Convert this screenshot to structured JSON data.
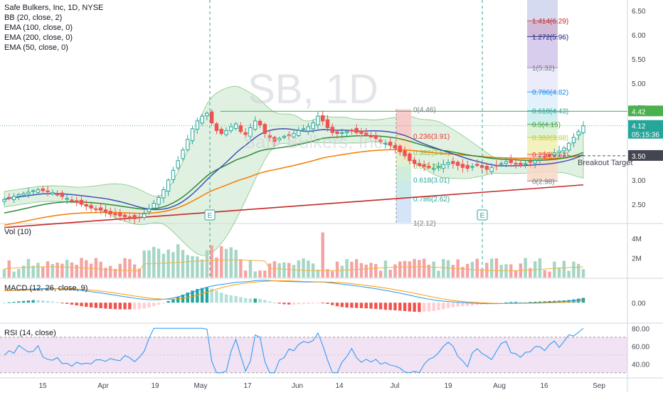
{
  "header": {
    "title": "Safe Bulkers, Inc, 1D, NYSE",
    "indicators": [
      "BB (20, close, 2)",
      "EMA (100, close, 0)",
      "EMA (200, close, 0)",
      "EMA (50, close, 0)"
    ],
    "watermark": "SB, 1D",
    "watermark_sub": "Safe Bulkers, Inc"
  },
  "colors": {
    "up": "#26a69a",
    "down": "#ef5350",
    "bb_fill": "#c8e6c9",
    "bb_line": "#81c784",
    "basis": "#3f51b5",
    "ema50": "#2e8b3a",
    "ema100": "#f57c00",
    "ema200": "#c62828",
    "rsi_line": "#2196f3",
    "rsi_band": "#e1bee7",
    "macd": "#2196f3",
    "signal": "#ff9800"
  },
  "chart_data": [
    {
      "type": "candlestick",
      "name": "price",
      "x_ticks": [
        "15",
        "Apr",
        "19",
        "May",
        "17",
        "Jun",
        "14",
        "Jul",
        "19",
        "Aug",
        "16",
        "Sep"
      ],
      "y_ticks": [
        "6.50",
        "6.00",
        "5.50",
        "5.00",
        "4.50",
        "4.00",
        "3.50",
        "3.00",
        "2.50"
      ],
      "ylim": [
        2.0,
        6.6
      ],
      "closes": [
        2.6,
        2.64,
        2.66,
        2.7,
        2.72,
        2.75,
        2.78,
        2.8,
        2.78,
        2.76,
        2.74,
        2.7,
        2.66,
        2.62,
        2.58,
        2.54,
        2.5,
        2.46,
        2.42,
        2.4,
        2.38,
        2.34,
        2.3,
        2.28,
        2.26,
        2.24,
        2.22,
        2.2,
        2.22,
        2.3,
        2.4,
        2.52,
        2.64,
        2.8,
        3.0,
        3.2,
        3.4,
        3.62,
        3.84,
        4.06,
        4.22,
        4.32,
        4.38,
        4.18,
        4.02,
        3.96,
        4.02,
        4.1,
        4.16,
        4.0,
        3.94,
        4.08,
        4.22,
        4.14,
        3.96,
        3.88,
        3.8,
        3.86,
        3.9,
        3.92,
        3.96,
        4.02,
        4.06,
        4.1,
        4.18,
        4.32,
        4.22,
        4.08,
        3.98,
        3.96,
        3.98,
        4.0,
        4.02,
        3.98,
        3.96,
        3.94,
        3.9,
        3.86,
        3.8,
        3.76,
        3.72,
        3.66,
        3.58,
        3.5,
        3.4,
        3.34,
        3.3,
        3.28,
        3.26,
        3.24,
        3.28,
        3.32,
        3.36,
        3.34,
        3.3,
        3.26,
        3.24,
        3.28,
        3.3,
        3.26,
        3.22,
        3.26,
        3.3,
        3.34,
        3.38,
        3.36,
        3.34,
        3.3,
        3.34,
        3.38,
        3.4,
        3.44,
        3.48,
        3.52,
        3.56,
        3.6,
        3.66,
        3.76,
        3.88,
        4.0,
        4.12
      ],
      "last_price": "4.12",
      "countdown": "05:15:36",
      "resistance": "4.42",
      "breakout_price": "3.50",
      "breakout_label": "Breakout Target",
      "earnings_marker": "E",
      "fib_left": [
        {
          "label": "0(4.46)",
          "value": 4.46
        },
        {
          "label": "0.236(3.91)",
          "value": 3.91
        },
        {
          "label": "0.382(3.57)",
          "value": 3.57
        },
        {
          "label": "0.5(3.29)",
          "value": 3.29
        },
        {
          "label": "0.618(3.01)",
          "value": 3.01
        },
        {
          "label": "0.786(2.62)",
          "value": 2.62
        },
        {
          "label": "1(2.12)",
          "value": 2.12
        }
      ],
      "fib_right": [
        {
          "label": "1.414(6.29)",
          "value": 6.29
        },
        {
          "label": "1.272(5.96)",
          "value": 5.96
        },
        {
          "label": "1(5.32)",
          "value": 5.32
        },
        {
          "label": "0.786(4.82)",
          "value": 4.82
        },
        {
          "label": "0.618(4.43)",
          "value": 4.43
        },
        {
          "label": "0.5(4.15)",
          "value": 4.15
        },
        {
          "label": "0.382(3.88)",
          "value": 3.88
        },
        {
          "label": "0.236(3.53)",
          "value": 3.53
        },
        {
          "label": "0(2.98)",
          "value": 2.98
        }
      ]
    },
    {
      "type": "bar",
      "name": "Vol (10)",
      "title": "Vol (10)",
      "y_ticks": [
        "4M",
        "2M"
      ],
      "ylim": [
        0,
        5000000
      ]
    },
    {
      "type": "line",
      "name": "MACD (12, 26, close, 9)",
      "title": "MACD (12, 26, close, 9)",
      "y_ticks": [
        "0.00"
      ],
      "ylim": [
        -0.25,
        0.3
      ]
    },
    {
      "type": "line",
      "name": "RSI (14, close)",
      "title": "RSI (14, close)",
      "y_ticks": [
        "80.00",
        "60.00",
        "40.00"
      ],
      "ylim": [
        25,
        85
      ],
      "bands": [
        30,
        70
      ]
    }
  ]
}
